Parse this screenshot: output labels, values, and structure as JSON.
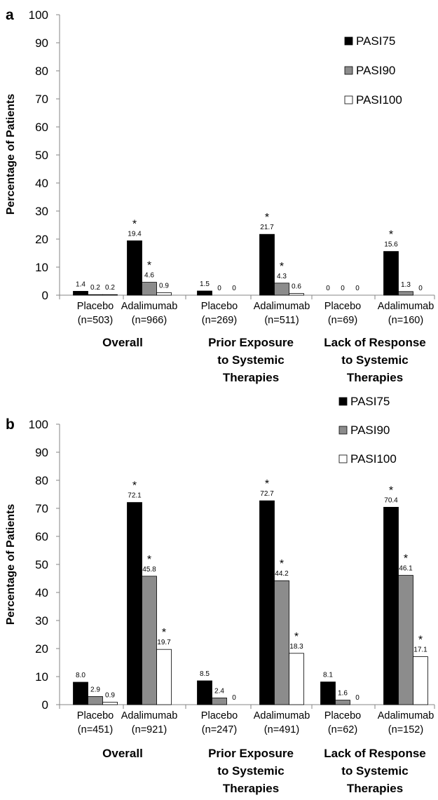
{
  "chart_data": [
    {
      "panel": "a",
      "type": "bar",
      "ylabel": "Percentage of Patients",
      "ylim": [
        0,
        100
      ],
      "yticks": [
        0,
        10,
        20,
        30,
        40,
        50,
        60,
        70,
        80,
        90,
        100
      ],
      "grid": false,
      "legend_position": "top-right",
      "groups": [
        {
          "label": [
            "Overall"
          ],
          "categories": [
            [
              "Placebo",
              "(n=503)"
            ],
            [
              "Adalimumab",
              "(n=966)"
            ]
          ]
        },
        {
          "label": [
            "Prior Exposure",
            "to Systemic",
            "Therapies"
          ],
          "categories": [
            [
              "Placebo",
              "(n=269)"
            ],
            [
              "Adalimumab",
              "(n=511)"
            ]
          ]
        },
        {
          "label": [
            "Lack of Response",
            "to Systemic",
            "Therapies"
          ],
          "categories": [
            [
              "Placebo",
              "(n=69)"
            ],
            [
              "Adalimumab",
              "(n=160)"
            ]
          ]
        }
      ],
      "series": [
        {
          "name": "PASI75",
          "color": "#000000",
          "values": [
            1.4,
            19.4,
            1.5,
            21.7,
            0,
            15.6
          ],
          "labels": [
            "1.4",
            "19.4",
            "1.5",
            "21.7",
            "0",
            "15.6"
          ],
          "significant": [
            false,
            true,
            false,
            true,
            false,
            true
          ]
        },
        {
          "name": "PASI90",
          "color": "#8c8c8c",
          "values": [
            0.2,
            4.6,
            0,
            4.3,
            0,
            1.3
          ],
          "labels": [
            "0.2",
            "4.6",
            "0",
            "4.3",
            "0",
            "1.3"
          ],
          "significant": [
            false,
            true,
            false,
            true,
            false,
            false
          ]
        },
        {
          "name": "PASI100",
          "color": "#ffffff",
          "values": [
            0.2,
            0.9,
            0,
            0.6,
            0,
            0
          ],
          "labels": [
            "0.2",
            "0.9",
            "0",
            "0.6",
            "0",
            "0"
          ],
          "significant": [
            false,
            false,
            false,
            false,
            false,
            false
          ]
        }
      ],
      "significance_marker": "*"
    },
    {
      "panel": "b",
      "type": "bar",
      "ylabel": "Percentage of Patients",
      "ylim": [
        0,
        100
      ],
      "yticks": [
        0,
        10,
        20,
        30,
        40,
        50,
        60,
        70,
        80,
        90,
        100
      ],
      "grid": false,
      "legend_position": "top-right",
      "groups": [
        {
          "label": [
            "Overall"
          ],
          "categories": [
            [
              "Placebo",
              "(n=451)"
            ],
            [
              "Adalimumab",
              "(n=921)"
            ]
          ]
        },
        {
          "label": [
            "Prior Exposure",
            "to Systemic",
            "Therapies"
          ],
          "categories": [
            [
              "Placebo",
              "(n=247)"
            ],
            [
              "Adalimumab",
              "(n=491)"
            ]
          ]
        },
        {
          "label": [
            "Lack of Response",
            "to Systemic",
            "Therapies"
          ],
          "categories": [
            [
              "Placebo",
              "(n=62)"
            ],
            [
              "Adalimumab",
              "(n=152)"
            ]
          ]
        }
      ],
      "series": [
        {
          "name": "PASI75",
          "color": "#000000",
          "values": [
            8.0,
            72.1,
            8.5,
            72.7,
            8.1,
            70.4
          ],
          "labels": [
            "8.0",
            "72.1",
            "8.5",
            "72.7",
            "8.1",
            "70.4"
          ],
          "significant": [
            false,
            true,
            false,
            true,
            false,
            true
          ]
        },
        {
          "name": "PASI90",
          "color": "#8c8c8c",
          "values": [
            2.9,
            45.8,
            2.4,
            44.2,
            1.6,
            46.1
          ],
          "labels": [
            "2.9",
            "45.8",
            "2.4",
            "44.2",
            "1.6",
            "46.1"
          ],
          "significant": [
            false,
            true,
            false,
            true,
            false,
            true
          ]
        },
        {
          "name": "PASI100",
          "color": "#ffffff",
          "values": [
            0.9,
            19.7,
            0,
            18.3,
            0,
            17.1
          ],
          "labels": [
            "0.9",
            "19.7",
            "0",
            "18.3",
            "0",
            "17.1"
          ],
          "significant": [
            false,
            true,
            false,
            true,
            false,
            true
          ]
        }
      ],
      "significance_marker": "*"
    }
  ]
}
